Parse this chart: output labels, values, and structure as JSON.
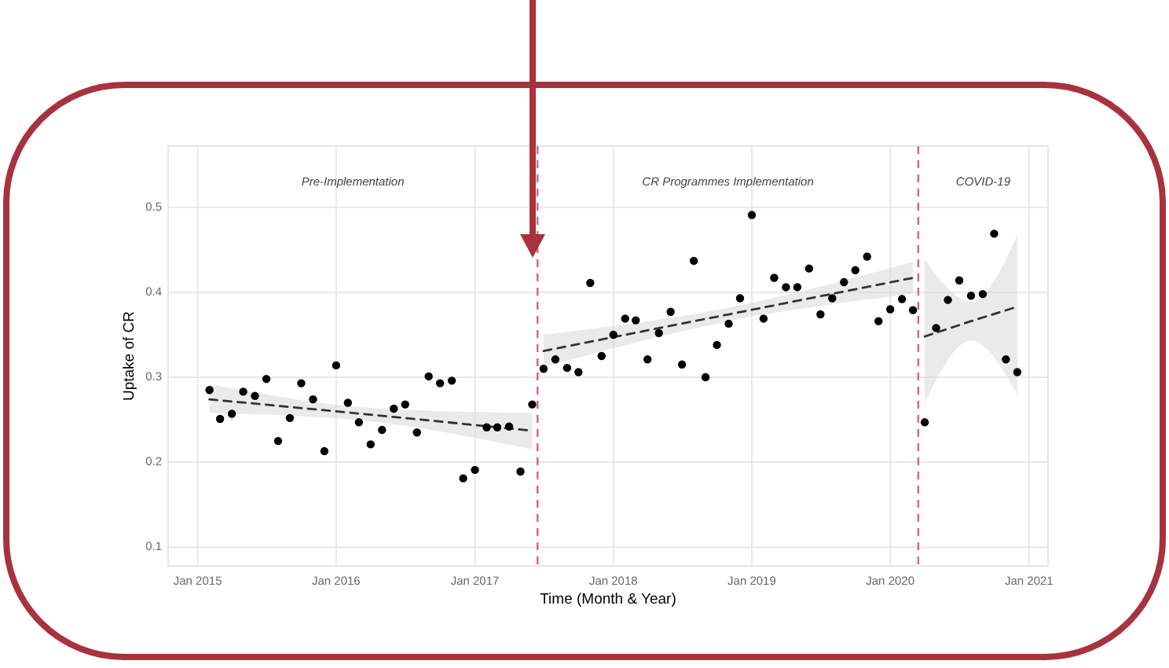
{
  "chart_data": {
    "type": "scatter",
    "xlabel": "Time (Month & Year)",
    "ylabel": "Uptake of CR",
    "xlim": [
      "2014-10-15",
      "2021-02-20"
    ],
    "ylim": [
      0.078,
      0.572
    ],
    "xticks": [
      {
        "value": "2015-01",
        "label": "Jan 2015"
      },
      {
        "value": "2016-01",
        "label": "Jan 2016"
      },
      {
        "value": "2017-01",
        "label": "Jan 2017"
      },
      {
        "value": "2018-01",
        "label": "Jan 2018"
      },
      {
        "value": "2019-01",
        "label": "Jan 2019"
      },
      {
        "value": "2020-01",
        "label": "Jan 2020"
      },
      {
        "value": "2021-01",
        "label": "Jan 2021"
      }
    ],
    "yticks": [
      0.1,
      0.2,
      0.3,
      0.4,
      0.5
    ],
    "grid": true,
    "series": [
      {
        "color": "#000000",
        "marker": "circle",
        "x": [
          "2015-02",
          "2015-03",
          "2015-04",
          "2015-05",
          "2015-06",
          "2015-07",
          "2015-08",
          "2015-09",
          "2015-10",
          "2015-11",
          "2015-12",
          "2016-01",
          "2016-02",
          "2016-03",
          "2016-04",
          "2016-05",
          "2016-06",
          "2016-07",
          "2016-08",
          "2016-09",
          "2016-10",
          "2016-11",
          "2016-12",
          "2017-01",
          "2017-02",
          "2017-03",
          "2017-04",
          "2017-05",
          "2017-06",
          "2017-07",
          "2017-08",
          "2017-09",
          "2017-10",
          "2017-11",
          "2017-12",
          "2018-01",
          "2018-02",
          "2018-03",
          "2018-04",
          "2018-05",
          "2018-06",
          "2018-07",
          "2018-08",
          "2018-09",
          "2018-10",
          "2018-11",
          "2018-12",
          "2019-01",
          "2019-02",
          "2019-03",
          "2019-04",
          "2019-05",
          "2019-06",
          "2019-07",
          "2019-08",
          "2019-09",
          "2019-10",
          "2019-11",
          "2019-12",
          "2020-01",
          "2020-02",
          "2020-03",
          "2020-04",
          "2020-05",
          "2020-06",
          "2020-07",
          "2020-08",
          "2020-09",
          "2020-10",
          "2020-11",
          "2020-12"
        ],
        "values": [
          0.285,
          0.251,
          0.257,
          0.283,
          0.278,
          0.298,
          0.225,
          0.252,
          0.293,
          0.274,
          0.213,
          0.314,
          0.27,
          0.247,
          0.221,
          0.238,
          0.263,
          0.268,
          0.235,
          0.301,
          0.293,
          0.296,
          0.181,
          0.191,
          0.241,
          0.241,
          0.242,
          0.189,
          0.268,
          0.31,
          0.321,
          0.311,
          0.306,
          0.411,
          0.325,
          0.35,
          0.369,
          0.367,
          0.321,
          0.352,
          0.377,
          0.315,
          0.437,
          0.3,
          0.338,
          0.363,
          0.393,
          0.491,
          0.369,
          0.417,
          0.406,
          0.406,
          0.428,
          0.374,
          0.393,
          0.412,
          0.426,
          0.442,
          0.366,
          0.38,
          0.392,
          0.379,
          0.247,
          0.358,
          0.391,
          0.414,
          0.396,
          0.398,
          0.469,
          0.321,
          0.306
        ]
      },
      {
        "type": "line",
        "color": "#333333",
        "line_style": "dashed",
        "marker": "none",
        "x": [
          "2015-02",
          "2016-04",
          "2017-06"
        ],
        "values": [
          0.274,
          0.256,
          0.237
        ],
        "lower": [
          0.258,
          0.248,
          0.215
        ],
        "upper": [
          0.292,
          0.264,
          0.258
        ]
      },
      {
        "type": "line",
        "color": "#333333",
        "line_style": "dashed",
        "marker": "none",
        "x": [
          "2017-07",
          "2018-11",
          "2020-03"
        ],
        "values": [
          0.331,
          0.374,
          0.417
        ],
        "lower": [
          0.312,
          0.366,
          0.398
        ],
        "upper": [
          0.35,
          0.382,
          0.436
        ]
      },
      {
        "type": "line",
        "color": "#333333",
        "line_style": "dashed",
        "marker": "none",
        "x": [
          "2020-04",
          "2020-08",
          "2020-12"
        ],
        "values": [
          0.348,
          0.366,
          0.383
        ],
        "lower": [
          0.27,
          0.343,
          0.28
        ],
        "upper": [
          0.439,
          0.389,
          0.467
        ]
      }
    ],
    "ref_lines": [
      {
        "axis": "x",
        "value": "2017-06-15",
        "color": "#e0607a",
        "line_style": "dashed"
      },
      {
        "axis": "x",
        "value": "2020-03-15",
        "color": "#e0607a",
        "line_style": "dashed"
      }
    ],
    "annotations": [
      "Pre-Implementation",
      "CR Programmes Implementation",
      "COVID-19"
    ]
  }
}
